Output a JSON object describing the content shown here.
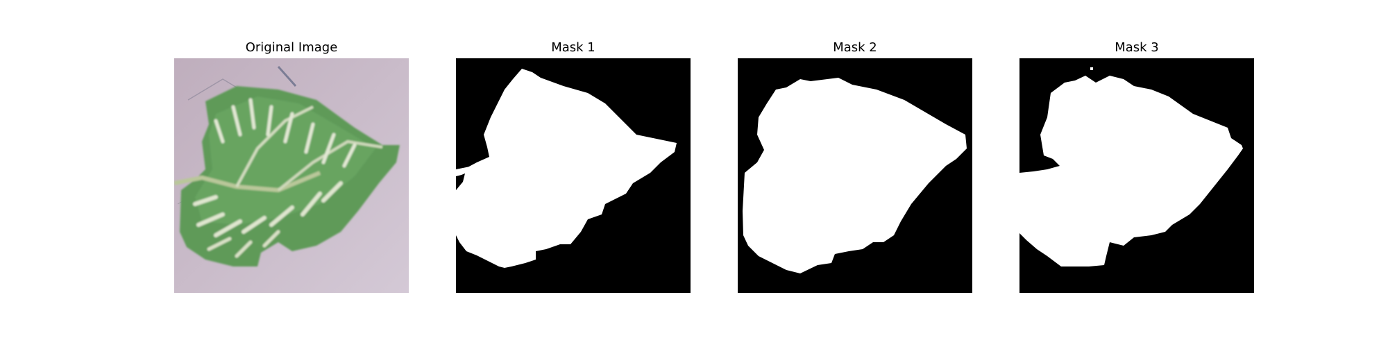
{
  "figure": {
    "panels": [
      {
        "title": "Original Image"
      },
      {
        "title": "Mask 1"
      },
      {
        "title": "Mask 2"
      },
      {
        "title": "Mask 3"
      }
    ]
  },
  "colors": {
    "mask_background": "#000000",
    "mask_foreground": "#ffffff",
    "photo_background": "#c9bcc8",
    "leaf_green": "#5f9a58",
    "leaf_light": "#c9d6b6"
  }
}
